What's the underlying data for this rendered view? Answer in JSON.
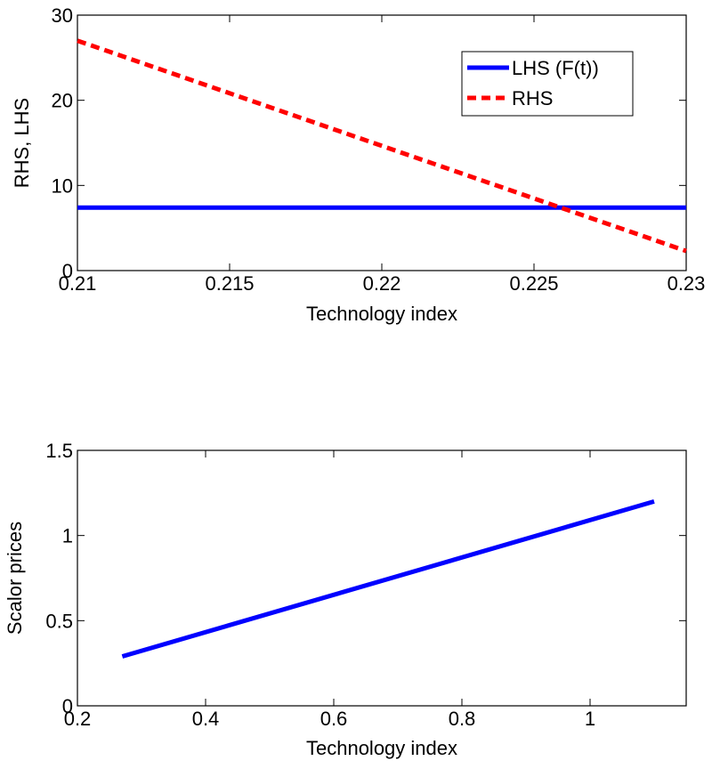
{
  "chart_data": [
    {
      "type": "line",
      "xlabel": "Technology index",
      "ylabel": "RHS, LHS",
      "xlim": [
        0.21,
        0.23
      ],
      "ylim": [
        0,
        30
      ],
      "xticks": [
        0.21,
        0.215,
        0.22,
        0.225,
        0.23
      ],
      "xtick_labels": [
        "0.21",
        "0.215",
        "0.22",
        "0.225",
        "0.23"
      ],
      "yticks": [
        0,
        10,
        20,
        30
      ],
      "ytick_labels": [
        "0",
        "10",
        "20",
        "30"
      ],
      "grid": false,
      "legend_position": "top-right",
      "series": [
        {
          "name": "LHS (F(t))",
          "color": "#0000ff",
          "style": "solid",
          "x": [
            0.21,
            0.23
          ],
          "y": [
            7.4,
            7.4
          ]
        },
        {
          "name": "RHS",
          "color": "#ff0000",
          "style": "dashed",
          "x": [
            0.21,
            0.23
          ],
          "y": [
            27.0,
            2.3
          ]
        }
      ]
    },
    {
      "type": "line",
      "xlabel": "Technology index",
      "ylabel": "Scalor prices",
      "xlim": [
        0.2,
        1.15
      ],
      "ylim": [
        0,
        1.5
      ],
      "xticks": [
        0.2,
        0.4,
        0.6,
        0.8,
        1.0
      ],
      "xtick_labels": [
        "0.2",
        "0.4",
        "0.6",
        "0.8",
        "1"
      ],
      "yticks": [
        0,
        0.5,
        1.0,
        1.5
      ],
      "ytick_labels": [
        "0",
        "0.5",
        "1",
        "1.5"
      ],
      "grid": false,
      "series": [
        {
          "color": "#0000ff",
          "style": "solid",
          "x": [
            0.27,
            1.1
          ],
          "y": [
            0.29,
            1.2
          ]
        }
      ]
    }
  ]
}
